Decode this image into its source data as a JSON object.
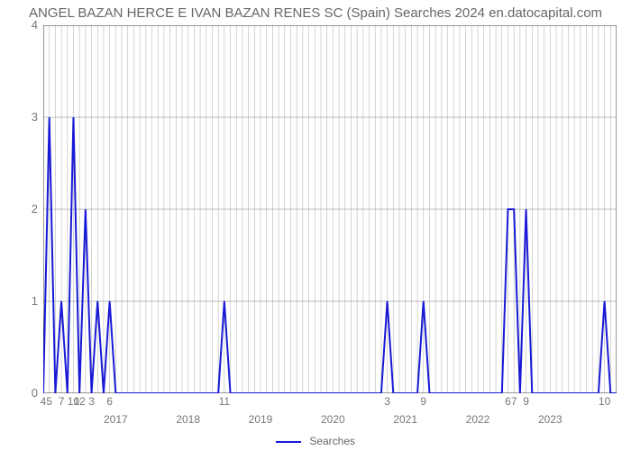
{
  "chart": {
    "type": "line",
    "title": "ANGEL BAZAN HERCE E IVAN BAZAN RENES SC (Spain) Searches 2024 en.datocapital.com",
    "title_color": "#666666",
    "title_fontsize": 15,
    "background_color": "#ffffff",
    "line_color": "#1919d6",
    "line_width": 2,
    "grid_color": "#808080",
    "grid_width": 0.6,
    "axis_color": "#333333",
    "tick_label_color": "#777777",
    "tick_fontsize": 12,
    "y_axis": {
      "min": 0,
      "max": 4,
      "ticks": [
        0,
        1,
        2,
        3,
        4
      ]
    },
    "x_count": 96,
    "year_markers": [
      {
        "label": "2017",
        "index": 12
      },
      {
        "label": "2018",
        "index": 24
      },
      {
        "label": "2019",
        "index": 36
      },
      {
        "label": "2020",
        "index": 48
      },
      {
        "label": "2021",
        "index": 60
      },
      {
        "label": "2022",
        "index": 72
      },
      {
        "label": "2023",
        "index": 84
      }
    ],
    "series": [
      0,
      3,
      0,
      1,
      0,
      3,
      0,
      2,
      0,
      1,
      0,
      1,
      0,
      0,
      0,
      0,
      0,
      0,
      0,
      0,
      0,
      0,
      0,
      0,
      0,
      0,
      0,
      0,
      0,
      0,
      1,
      0,
      0,
      0,
      0,
      0,
      0,
      0,
      0,
      0,
      0,
      0,
      0,
      0,
      0,
      0,
      0,
      0,
      0,
      0,
      0,
      0,
      0,
      0,
      0,
      0,
      0,
      1,
      0,
      0,
      0,
      0,
      0,
      1,
      0,
      0,
      0,
      0,
      0,
      0,
      0,
      0,
      0,
      0,
      0,
      0,
      0,
      2,
      2,
      0,
      2,
      0,
      0,
      0,
      0,
      0,
      0,
      0,
      0,
      0,
      0,
      0,
      0,
      1,
      0,
      0
    ],
    "x_labels": [
      {
        "i": 0,
        "t": "4"
      },
      {
        "i": 1,
        "t": "5"
      },
      {
        "i": 3,
        "t": "7"
      },
      {
        "i": 5,
        "t": "10"
      },
      {
        "i": 6,
        "t": "12"
      },
      {
        "i": 8,
        "t": "3"
      },
      {
        "i": 11,
        "t": "6"
      },
      {
        "i": 30,
        "t": "11"
      },
      {
        "i": 57,
        "t": "3"
      },
      {
        "i": 63,
        "t": "9"
      },
      {
        "i": 77,
        "t": "6"
      },
      {
        "i": 78,
        "t": "7"
      },
      {
        "i": 80,
        "t": "9"
      },
      {
        "i": 93,
        "t": "10"
      }
    ],
    "legend_label": "Searches"
  }
}
